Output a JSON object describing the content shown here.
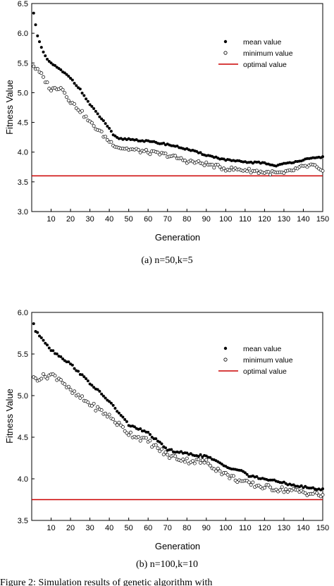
{
  "colors": {
    "mean": "#000000",
    "minimum": "#000000",
    "optimal": "#cc0000"
  },
  "figure_caption": "Figure 2: Simulation results of genetic algorithm with",
  "chart_data": [
    {
      "type": "scatter",
      "caption": "(a) n=50,k=5",
      "xlabel": "Generation",
      "ylabel": "Fitness Value",
      "xlim": [
        0,
        150
      ],
      "ylim": [
        3.0,
        6.5
      ],
      "xticks": [
        10,
        20,
        30,
        40,
        50,
        60,
        70,
        80,
        90,
        100,
        110,
        120,
        130,
        140,
        150
      ],
      "yticks": [
        3.0,
        3.5,
        4.0,
        4.5,
        5.0,
        5.5,
        6.0,
        6.5
      ],
      "ytick_labels": [
        "3.0",
        "3.5",
        "4.0",
        "4.5",
        "5.0",
        "5.5",
        "6.0",
        "6.5"
      ],
      "legend": {
        "position": "top-right",
        "entries": [
          "mean value",
          "minimum value",
          "optimal value"
        ]
      },
      "mean_anchors": [
        [
          1,
          6.35
        ],
        [
          2,
          6.15
        ],
        [
          3,
          5.95
        ],
        [
          5,
          5.75
        ],
        [
          8,
          5.55
        ],
        [
          12,
          5.45
        ],
        [
          20,
          5.25
        ],
        [
          25,
          5.05
        ],
        [
          30,
          4.8
        ],
        [
          35,
          4.6
        ],
        [
          40,
          4.4
        ],
        [
          42,
          4.28
        ],
        [
          45,
          4.22
        ],
        [
          50,
          4.22
        ],
        [
          60,
          4.18
        ],
        [
          70,
          4.13
        ],
        [
          80,
          4.05
        ],
        [
          90,
          3.95
        ],
        [
          100,
          3.87
        ],
        [
          110,
          3.83
        ],
        [
          120,
          3.82
        ],
        [
          125,
          3.77
        ],
        [
          130,
          3.8
        ],
        [
          140,
          3.87
        ],
        [
          150,
          3.92
        ]
      ],
      "min_anchors": [
        [
          1,
          5.45
        ],
        [
          5,
          5.3
        ],
        [
          10,
          5.05
        ],
        [
          15,
          5.1
        ],
        [
          20,
          4.85
        ],
        [
          25,
          4.7
        ],
        [
          30,
          4.5
        ],
        [
          35,
          4.35
        ],
        [
          40,
          4.18
        ],
        [
          45,
          4.08
        ],
        [
          50,
          4.05
        ],
        [
          60,
          4.0
        ],
        [
          70,
          3.95
        ],
        [
          80,
          3.85
        ],
        [
          90,
          3.8
        ],
        [
          100,
          3.72
        ],
        [
          110,
          3.7
        ],
        [
          120,
          3.66
        ],
        [
          130,
          3.64
        ],
        [
          135,
          3.7
        ],
        [
          140,
          3.75
        ],
        [
          145,
          3.78
        ],
        [
          150,
          3.65
        ]
      ],
      "optimal_value": 3.6
    },
    {
      "type": "scatter",
      "caption": "(b) n=100,k=10",
      "xlabel": "Generation",
      "ylabel": "Fitness Value",
      "xlim": [
        0,
        150
      ],
      "ylim": [
        3.5,
        6.0
      ],
      "xticks": [
        10,
        20,
        30,
        40,
        50,
        60,
        70,
        80,
        90,
        100,
        110,
        120,
        130,
        140,
        150
      ],
      "yticks": [
        3.5,
        4.0,
        4.5,
        5.0,
        5.5,
        6.0
      ],
      "ytick_labels": [
        "3.5",
        "4.0",
        "4.5",
        "5.0",
        "5.5",
        "6.0"
      ],
      "legend": {
        "position": "top-right",
        "entries": [
          "mean value",
          "minimum value",
          "optimal value"
        ]
      },
      "mean_anchors": [
        [
          1,
          5.87
        ],
        [
          2,
          5.77
        ],
        [
          5,
          5.7
        ],
        [
          10,
          5.55
        ],
        [
          20,
          5.38
        ],
        [
          30,
          5.15
        ],
        [
          40,
          4.93
        ],
        [
          50,
          4.65
        ],
        [
          60,
          4.55
        ],
        [
          70,
          4.35
        ],
        [
          80,
          4.3
        ],
        [
          90,
          4.27
        ],
        [
          100,
          4.15
        ],
        [
          110,
          4.08
        ],
        [
          112,
          4.03
        ],
        [
          120,
          4.0
        ],
        [
          130,
          3.95
        ],
        [
          140,
          3.9
        ],
        [
          150,
          3.87
        ]
      ],
      "min_anchors": [
        [
          1,
          5.2
        ],
        [
          5,
          5.22
        ],
        [
          10,
          5.25
        ],
        [
          15,
          5.2
        ],
        [
          20,
          5.05
        ],
        [
          30,
          4.9
        ],
        [
          40,
          4.75
        ],
        [
          50,
          4.55
        ],
        [
          60,
          4.45
        ],
        [
          70,
          4.28
        ],
        [
          80,
          4.22
        ],
        [
          90,
          4.2
        ],
        [
          100,
          4.05
        ],
        [
          110,
          3.95
        ],
        [
          120,
          3.9
        ],
        [
          130,
          3.87
        ],
        [
          140,
          3.84
        ],
        [
          150,
          3.8
        ]
      ],
      "optimal_value": 3.75
    }
  ]
}
